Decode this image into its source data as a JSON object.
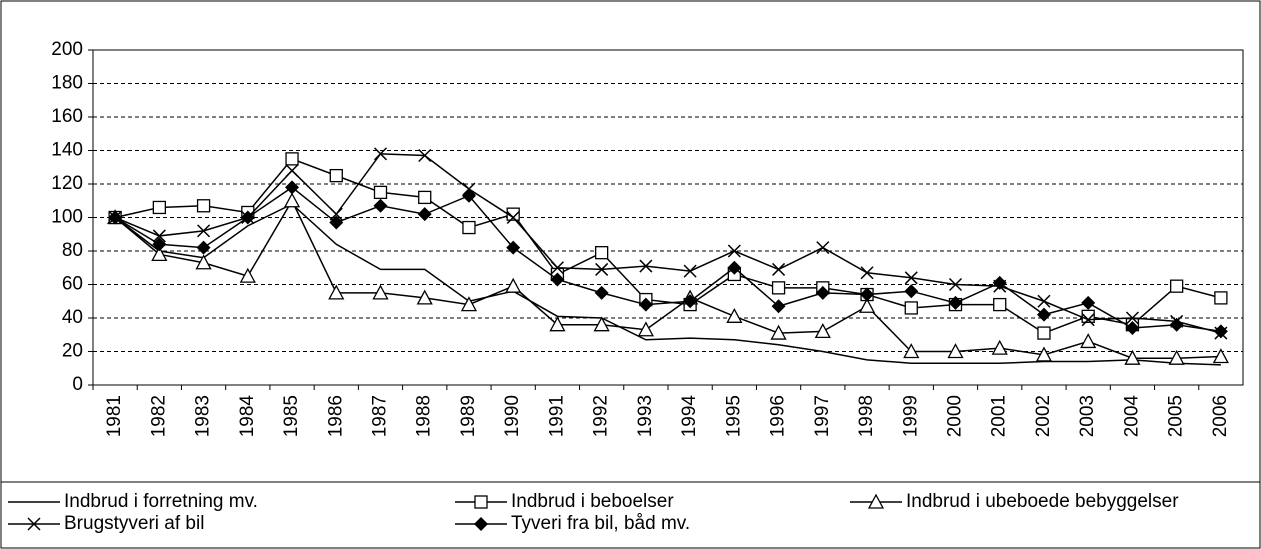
{
  "chart_data": {
    "type": "line",
    "categories": [
      "1981",
      "1982",
      "1983",
      "1984",
      "1985",
      "1986",
      "1987",
      "1988",
      "1989",
      "1990",
      "1991",
      "1992",
      "1993",
      "1994",
      "1995",
      "1996",
      "1997",
      "1998",
      "1999",
      "2000",
      "2001",
      "2002",
      "2003",
      "2004",
      "2005",
      "2006"
    ],
    "ylim": [
      0,
      200
    ],
    "yticks": [
      0,
      20,
      40,
      60,
      80,
      100,
      120,
      140,
      160,
      180,
      200
    ],
    "grid": true,
    "legend_position": "bottom",
    "series": [
      {
        "name": "Indbrud i forretning mv.",
        "color": "#000000",
        "marker": "none",
        "values": [
          100,
          80,
          76,
          95,
          108,
          84,
          69,
          69,
          50,
          56,
          41,
          40,
          27,
          28,
          27,
          24,
          20,
          15,
          13,
          13,
          13,
          14,
          14,
          15,
          13,
          12
        ]
      },
      {
        "name": "Indbrud i beboelser",
        "color": "#000000",
        "marker": "square",
        "values": [
          100,
          106,
          107,
          103,
          135,
          125,
          115,
          112,
          94,
          102,
          66,
          79,
          51,
          48,
          66,
          58,
          58,
          54,
          46,
          48,
          48,
          31,
          41,
          36,
          59,
          52
        ]
      },
      {
        "name": "Indbrud i ubeboede bebyggelser",
        "color": "#000000",
        "marker": "triangle",
        "values": [
          100,
          78,
          73,
          65,
          110,
          55,
          55,
          52,
          48,
          59,
          36,
          36,
          33,
          52,
          41,
          31,
          32,
          47,
          20,
          20,
          22,
          18,
          26,
          16,
          16,
          17
        ]
      },
      {
        "name": "Brugstyveri af bil",
        "color": "#000000",
        "marker": "x",
        "values": [
          100,
          89,
          92,
          100,
          128,
          102,
          138,
          137,
          117,
          100,
          70,
          69,
          71,
          68,
          80,
          69,
          82,
          67,
          64,
          60,
          59,
          50,
          39,
          40,
          38,
          31
        ]
      },
      {
        "name": "Tyveri fra bil, båd mv.",
        "color": "#000000",
        "marker": "diamond",
        "values": [
          100,
          84,
          82,
          100,
          118,
          97,
          107,
          102,
          113,
          82,
          63,
          55,
          48,
          50,
          70,
          47,
          55,
          54,
          56,
          49,
          61,
          42,
          49,
          34,
          36,
          32
        ]
      }
    ]
  }
}
